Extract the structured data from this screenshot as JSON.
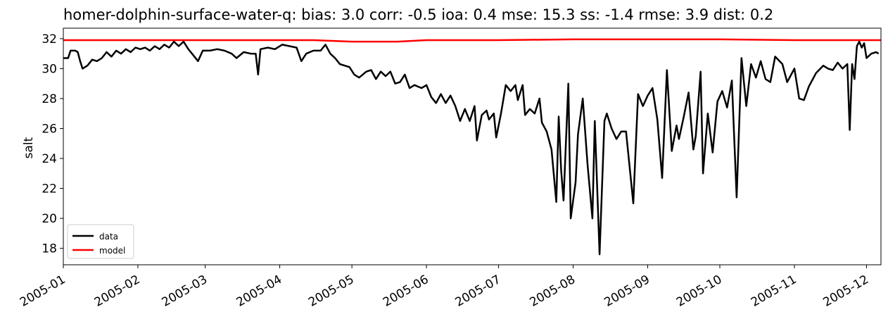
{
  "chart_data": {
    "type": "line",
    "title": "homer-dolphin-surface-water-q: bias: 3.0  corr: -0.5  ioa: 0.4  mse: 15.3  ss: -1.4  rmse: 3.9  dist: 0.2",
    "xlabel": "",
    "ylabel": "salt",
    "xlim": [
      "2005-01-01",
      "2005-12-07"
    ],
    "ylim": [
      16.9,
      32.7
    ],
    "x_ticks": [
      "2005-01",
      "2005-02",
      "2005-03",
      "2005-04",
      "2005-05",
      "2005-06",
      "2005-07",
      "2005-08",
      "2005-09",
      "2005-10",
      "2005-11",
      "2005-12"
    ],
    "y_ticks": [
      18,
      20,
      22,
      24,
      26,
      28,
      30,
      32
    ],
    "grid": false,
    "legend": "lower-left",
    "series": [
      {
        "name": "data",
        "color": "#000000",
        "points": [
          [
            "2005-01-01",
            30.7
          ],
          [
            "2005-01-03",
            30.7
          ],
          [
            "2005-01-04",
            31.2
          ],
          [
            "2005-01-06",
            31.2
          ],
          [
            "2005-01-07",
            31.1
          ],
          [
            "2005-01-08",
            30.5
          ],
          [
            "2005-01-09",
            30.0
          ],
          [
            "2005-01-11",
            30.2
          ],
          [
            "2005-01-13",
            30.6
          ],
          [
            "2005-01-15",
            30.5
          ],
          [
            "2005-01-17",
            30.7
          ],
          [
            "2005-01-19",
            31.1
          ],
          [
            "2005-01-21",
            30.8
          ],
          [
            "2005-01-23",
            31.2
          ],
          [
            "2005-01-25",
            31.0
          ],
          [
            "2005-01-27",
            31.3
          ],
          [
            "2005-01-29",
            31.1
          ],
          [
            "2005-01-31",
            31.4
          ],
          [
            "2005-02-02",
            31.3
          ],
          [
            "2005-02-04",
            31.4
          ],
          [
            "2005-02-06",
            31.2
          ],
          [
            "2005-02-08",
            31.5
          ],
          [
            "2005-02-10",
            31.3
          ],
          [
            "2005-02-12",
            31.6
          ],
          [
            "2005-02-14",
            31.4
          ],
          [
            "2005-02-16",
            31.8
          ],
          [
            "2005-02-18",
            31.5
          ],
          [
            "2005-02-20",
            31.8
          ],
          [
            "2005-02-22",
            31.3
          ],
          [
            "2005-02-24",
            30.9
          ],
          [
            "2005-02-26",
            30.5
          ],
          [
            "2005-02-28",
            31.2
          ],
          [
            "2005-03-03",
            31.2
          ],
          [
            "2005-03-06",
            31.3
          ],
          [
            "2005-03-09",
            31.2
          ],
          [
            "2005-03-12",
            31.0
          ],
          [
            "2005-03-14",
            30.7
          ],
          [
            "2005-03-17",
            31.1
          ],
          [
            "2005-03-20",
            31.0
          ],
          [
            "2005-03-22",
            31.0
          ],
          [
            "2005-03-23",
            29.6
          ],
          [
            "2005-03-24",
            31.3
          ],
          [
            "2005-03-27",
            31.4
          ],
          [
            "2005-03-30",
            31.3
          ],
          [
            "2005-04-02",
            31.6
          ],
          [
            "2005-04-05",
            31.5
          ],
          [
            "2005-04-08",
            31.4
          ],
          [
            "2005-04-10",
            30.5
          ],
          [
            "2005-04-12",
            31.0
          ],
          [
            "2005-04-15",
            31.2
          ],
          [
            "2005-04-18",
            31.2
          ],
          [
            "2005-04-20",
            31.6
          ],
          [
            "2005-04-22",
            31.0
          ],
          [
            "2005-04-24",
            30.7
          ],
          [
            "2005-04-26",
            30.3
          ],
          [
            "2005-04-28",
            30.2
          ],
          [
            "2005-04-30",
            30.1
          ],
          [
            "2005-05-02",
            29.6
          ],
          [
            "2005-05-04",
            29.4
          ],
          [
            "2005-05-07",
            29.8
          ],
          [
            "2005-05-09",
            29.9
          ],
          [
            "2005-05-11",
            29.3
          ],
          [
            "2005-05-13",
            29.8
          ],
          [
            "2005-05-15",
            29.5
          ],
          [
            "2005-05-17",
            29.8
          ],
          [
            "2005-05-19",
            29.0
          ],
          [
            "2005-05-21",
            29.1
          ],
          [
            "2005-05-23",
            29.6
          ],
          [
            "2005-05-25",
            28.7
          ],
          [
            "2005-05-27",
            28.9
          ],
          [
            "2005-05-30",
            28.7
          ],
          [
            "2005-06-01",
            28.9
          ],
          [
            "2005-06-03",
            28.1
          ],
          [
            "2005-06-05",
            27.7
          ],
          [
            "2005-06-07",
            28.3
          ],
          [
            "2005-06-09",
            27.7
          ],
          [
            "2005-06-11",
            28.2
          ],
          [
            "2005-06-13",
            27.5
          ],
          [
            "2005-06-15",
            26.5
          ],
          [
            "2005-06-17",
            27.3
          ],
          [
            "2005-06-19",
            26.5
          ],
          [
            "2005-06-21",
            27.5
          ],
          [
            "2005-06-22",
            25.2
          ],
          [
            "2005-06-24",
            26.9
          ],
          [
            "2005-06-26",
            27.2
          ],
          [
            "2005-06-27",
            26.6
          ],
          [
            "2005-06-29",
            27.0
          ],
          [
            "2005-06-30",
            25.4
          ],
          [
            "2005-07-02",
            27.0
          ],
          [
            "2005-07-04",
            28.9
          ],
          [
            "2005-07-06",
            28.5
          ],
          [
            "2005-07-08",
            28.9
          ],
          [
            "2005-07-09",
            27.9
          ],
          [
            "2005-07-11",
            28.9
          ],
          [
            "2005-07-12",
            26.9
          ],
          [
            "2005-07-14",
            27.3
          ],
          [
            "2005-07-16",
            27.0
          ],
          [
            "2005-07-18",
            28.0
          ],
          [
            "2005-07-19",
            26.4
          ],
          [
            "2005-07-21",
            25.8
          ],
          [
            "2005-07-23",
            24.6
          ],
          [
            "2005-07-25",
            21.1
          ],
          [
            "2005-07-26",
            26.8
          ],
          [
            "2005-07-27",
            23.2
          ],
          [
            "2005-07-28",
            21.2
          ],
          [
            "2005-07-30",
            29.0
          ],
          [
            "2005-07-31",
            20.0
          ],
          [
            "2005-08-02",
            22.4
          ],
          [
            "2005-08-03",
            25.6
          ],
          [
            "2005-08-05",
            28.0
          ],
          [
            "2005-08-07",
            23.6
          ],
          [
            "2005-08-09",
            20.0
          ],
          [
            "2005-08-10",
            26.5
          ],
          [
            "2005-08-12",
            17.6
          ],
          [
            "2005-08-14",
            26.5
          ],
          [
            "2005-08-15",
            27.0
          ],
          [
            "2005-08-17",
            26.0
          ],
          [
            "2005-08-19",
            25.3
          ],
          [
            "2005-08-21",
            25.8
          ],
          [
            "2005-08-23",
            25.8
          ],
          [
            "2005-08-25",
            22.6
          ],
          [
            "2005-08-26",
            21.0
          ],
          [
            "2005-08-28",
            28.3
          ],
          [
            "2005-08-30",
            27.5
          ],
          [
            "2005-09-01",
            28.2
          ],
          [
            "2005-09-03",
            28.7
          ],
          [
            "2005-09-05",
            26.6
          ],
          [
            "2005-09-07",
            22.7
          ],
          [
            "2005-09-09",
            29.9
          ],
          [
            "2005-09-11",
            24.5
          ],
          [
            "2005-09-13",
            26.2
          ],
          [
            "2005-09-14",
            25.3
          ],
          [
            "2005-09-16",
            26.8
          ],
          [
            "2005-09-18",
            28.4
          ],
          [
            "2005-09-20",
            24.6
          ],
          [
            "2005-09-21",
            25.5
          ],
          [
            "2005-09-23",
            29.8
          ],
          [
            "2005-09-24",
            23.0
          ],
          [
            "2005-09-26",
            27.0
          ],
          [
            "2005-09-28",
            24.4
          ],
          [
            "2005-09-30",
            27.8
          ],
          [
            "2005-10-02",
            28.5
          ],
          [
            "2005-10-04",
            27.4
          ],
          [
            "2005-10-06",
            29.2
          ],
          [
            "2005-10-08",
            21.4
          ],
          [
            "2005-10-10",
            30.7
          ],
          [
            "2005-10-12",
            27.5
          ],
          [
            "2005-10-14",
            30.3
          ],
          [
            "2005-10-16",
            29.4
          ],
          [
            "2005-10-18",
            30.5
          ],
          [
            "2005-10-20",
            29.3
          ],
          [
            "2005-10-22",
            29.1
          ],
          [
            "2005-10-24",
            30.8
          ],
          [
            "2005-10-27",
            30.3
          ],
          [
            "2005-10-29",
            29.1
          ],
          [
            "2005-11-01",
            30.0
          ],
          [
            "2005-11-03",
            28.0
          ],
          [
            "2005-11-05",
            27.9
          ],
          [
            "2005-11-07",
            28.8
          ],
          [
            "2005-11-10",
            29.7
          ],
          [
            "2005-11-13",
            30.2
          ],
          [
            "2005-11-15",
            30.0
          ],
          [
            "2005-11-17",
            29.9
          ],
          [
            "2005-11-19",
            30.4
          ],
          [
            "2005-11-21",
            30.0
          ],
          [
            "2005-11-23",
            30.3
          ],
          [
            "2005-11-24",
            25.9
          ],
          [
            "2005-11-25",
            30.3
          ],
          [
            "2005-11-26",
            29.3
          ],
          [
            "2005-11-27",
            31.5
          ],
          [
            "2005-11-28",
            31.8
          ],
          [
            "2005-11-29",
            31.4
          ],
          [
            "2005-11-30",
            31.7
          ],
          [
            "2005-12-01",
            30.7
          ],
          [
            "2005-12-03",
            31.0
          ],
          [
            "2005-12-05",
            31.1
          ],
          [
            "2005-12-06",
            31.0
          ]
        ]
      },
      {
        "name": "model",
        "color": "#ff0000",
        "points": [
          [
            "2005-01-01",
            31.9
          ],
          [
            "2005-02-01",
            31.9
          ],
          [
            "2005-03-01",
            31.9
          ],
          [
            "2005-04-01",
            31.9
          ],
          [
            "2005-04-15",
            31.9
          ],
          [
            "2005-05-01",
            31.8
          ],
          [
            "2005-05-20",
            31.8
          ],
          [
            "2005-06-01",
            31.9
          ],
          [
            "2005-07-01",
            31.9
          ],
          [
            "2005-08-01",
            31.95
          ],
          [
            "2005-09-01",
            31.95
          ],
          [
            "2005-10-01",
            31.95
          ],
          [
            "2005-11-01",
            31.9
          ],
          [
            "2005-12-07",
            31.9
          ]
        ]
      }
    ]
  }
}
